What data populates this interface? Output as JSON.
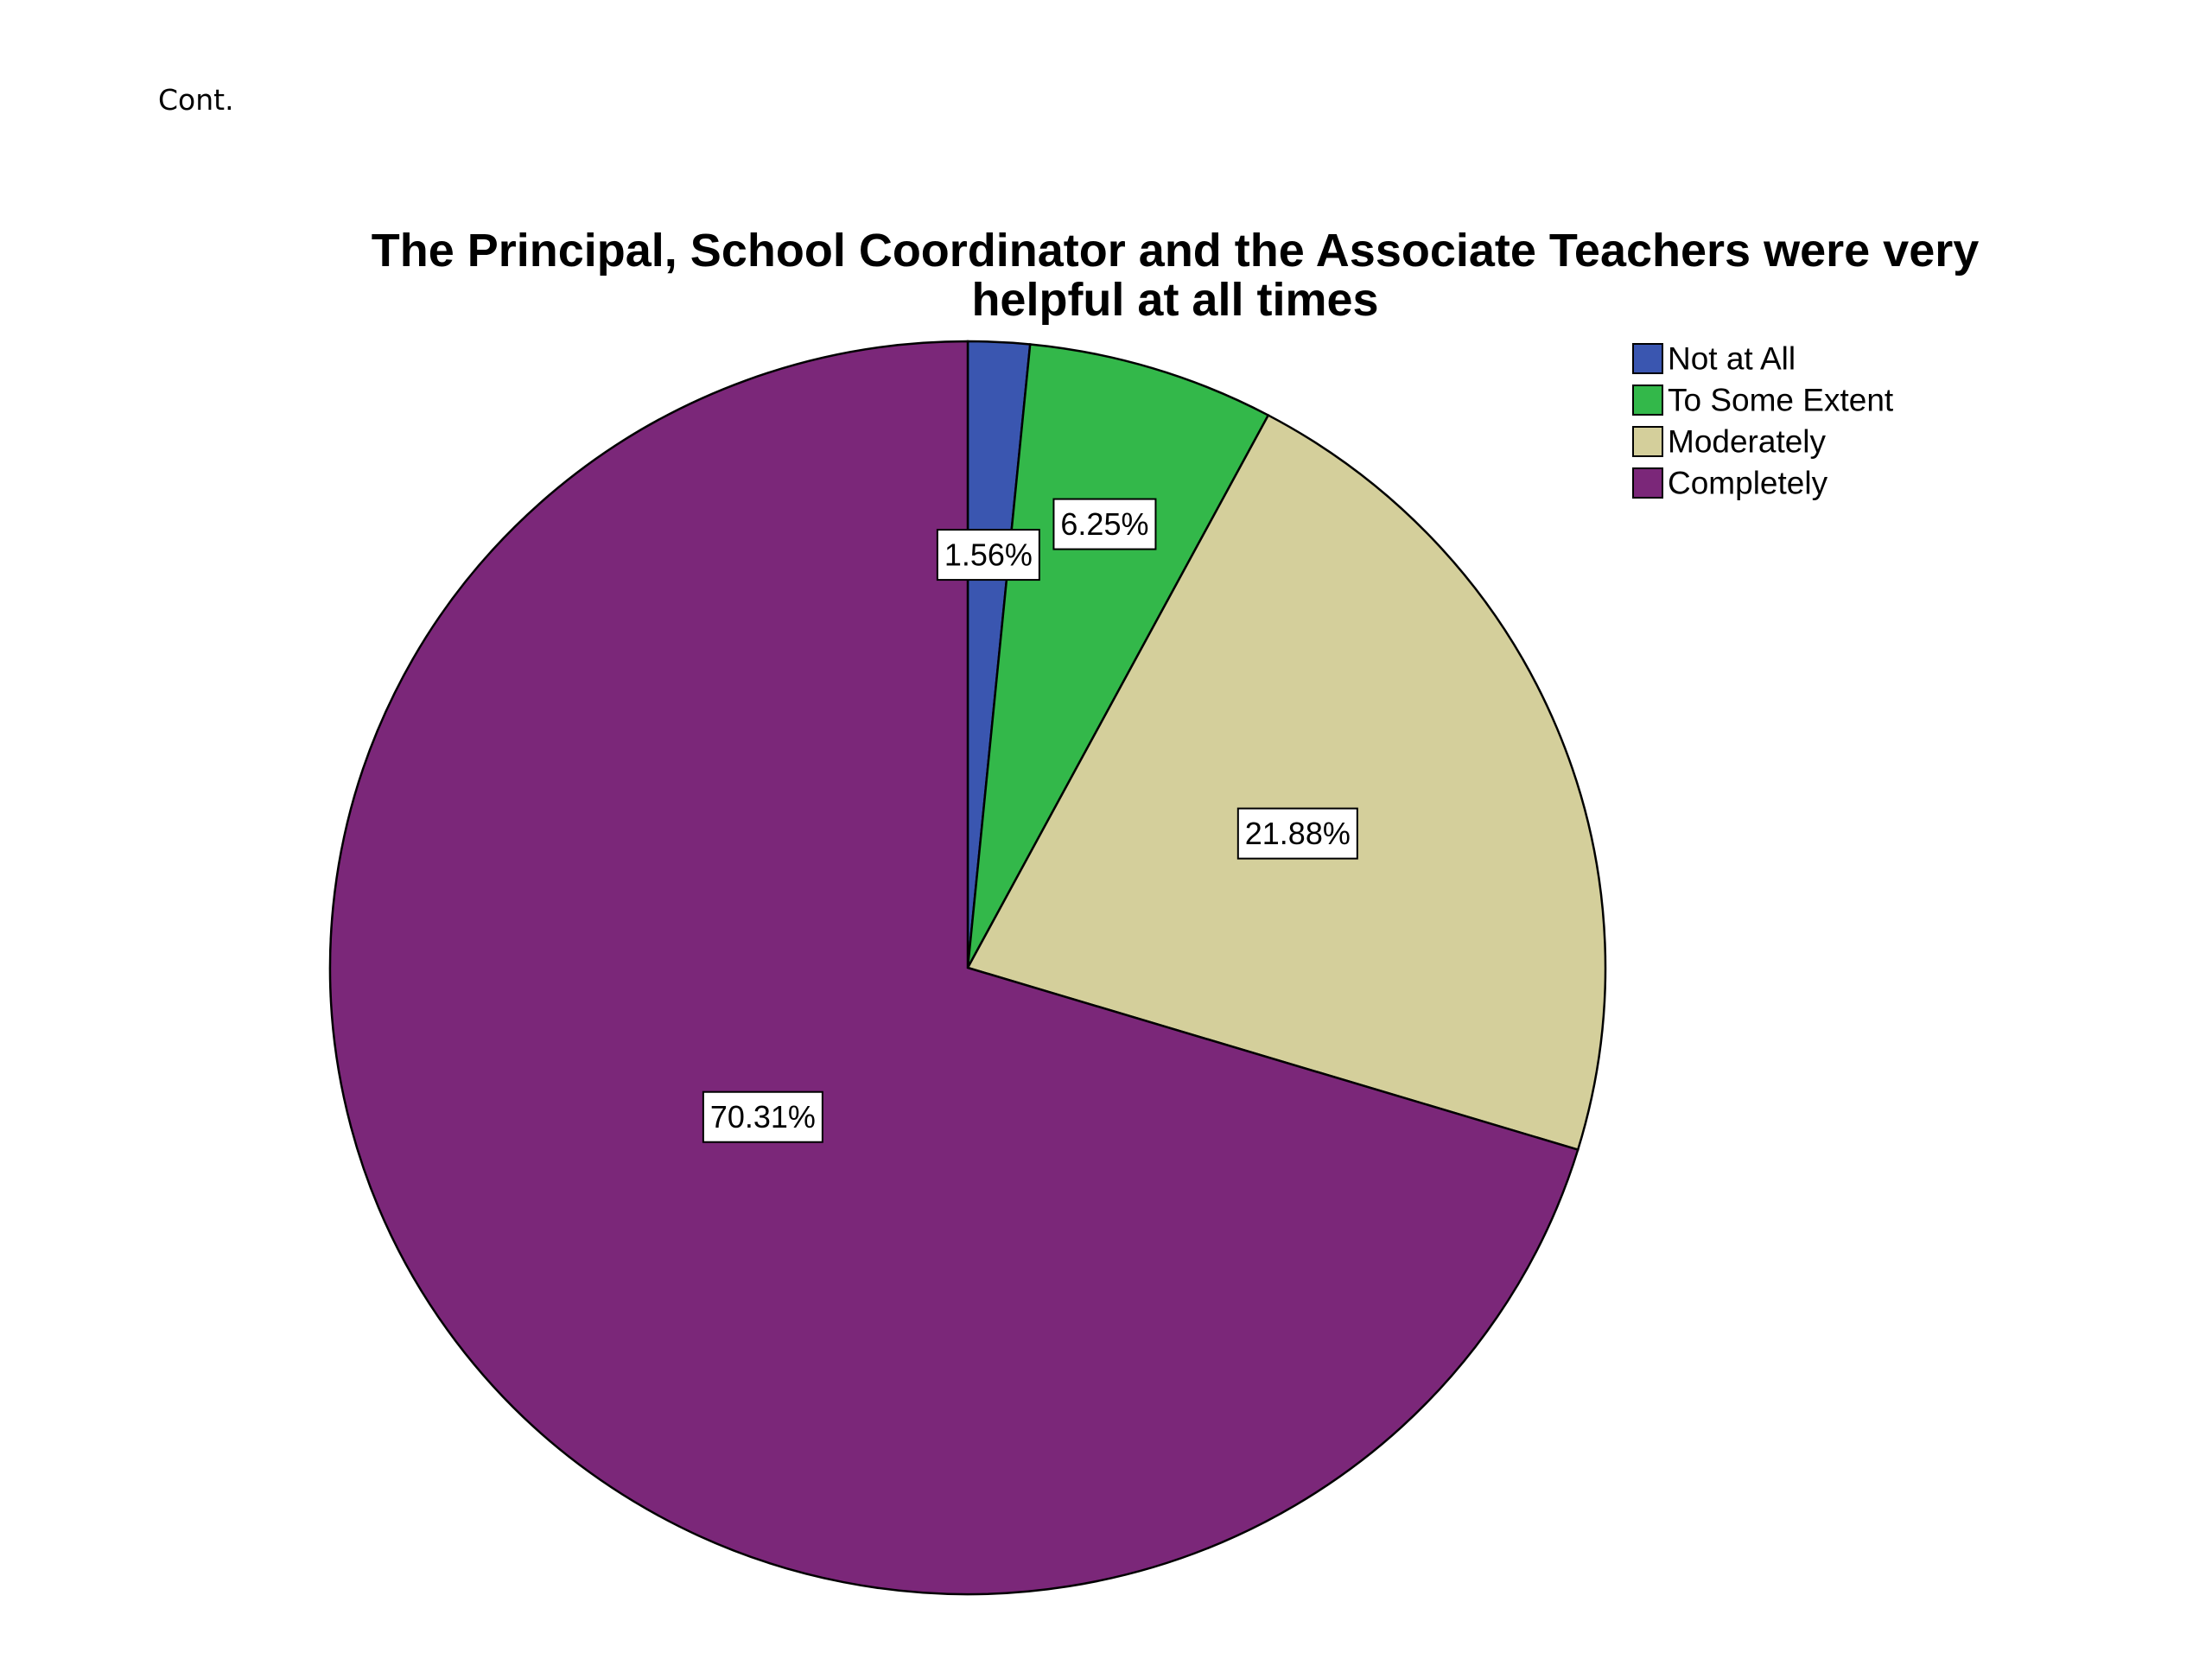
{
  "page": {
    "cont_label": "Cont."
  },
  "chart_data": {
    "type": "pie",
    "title_lines": [
      "The Principal, School Coordinator and the Associate Teachers were very",
      "helpful at all times"
    ],
    "categories": [
      "Not at All",
      "To Some Extent",
      "Moderately",
      "Completely"
    ],
    "values": [
      1.56,
      6.25,
      21.88,
      70.31
    ],
    "data_labels": [
      "1.56%",
      "6.25%",
      "21.88%",
      "70.31%"
    ],
    "colors": [
      "#3a56b0",
      "#33b84a",
      "#d4cf9b",
      "#7b2779"
    ],
    "start_angle": "12 o'clock",
    "direction": "clockwise",
    "legend_position": "top-right"
  }
}
